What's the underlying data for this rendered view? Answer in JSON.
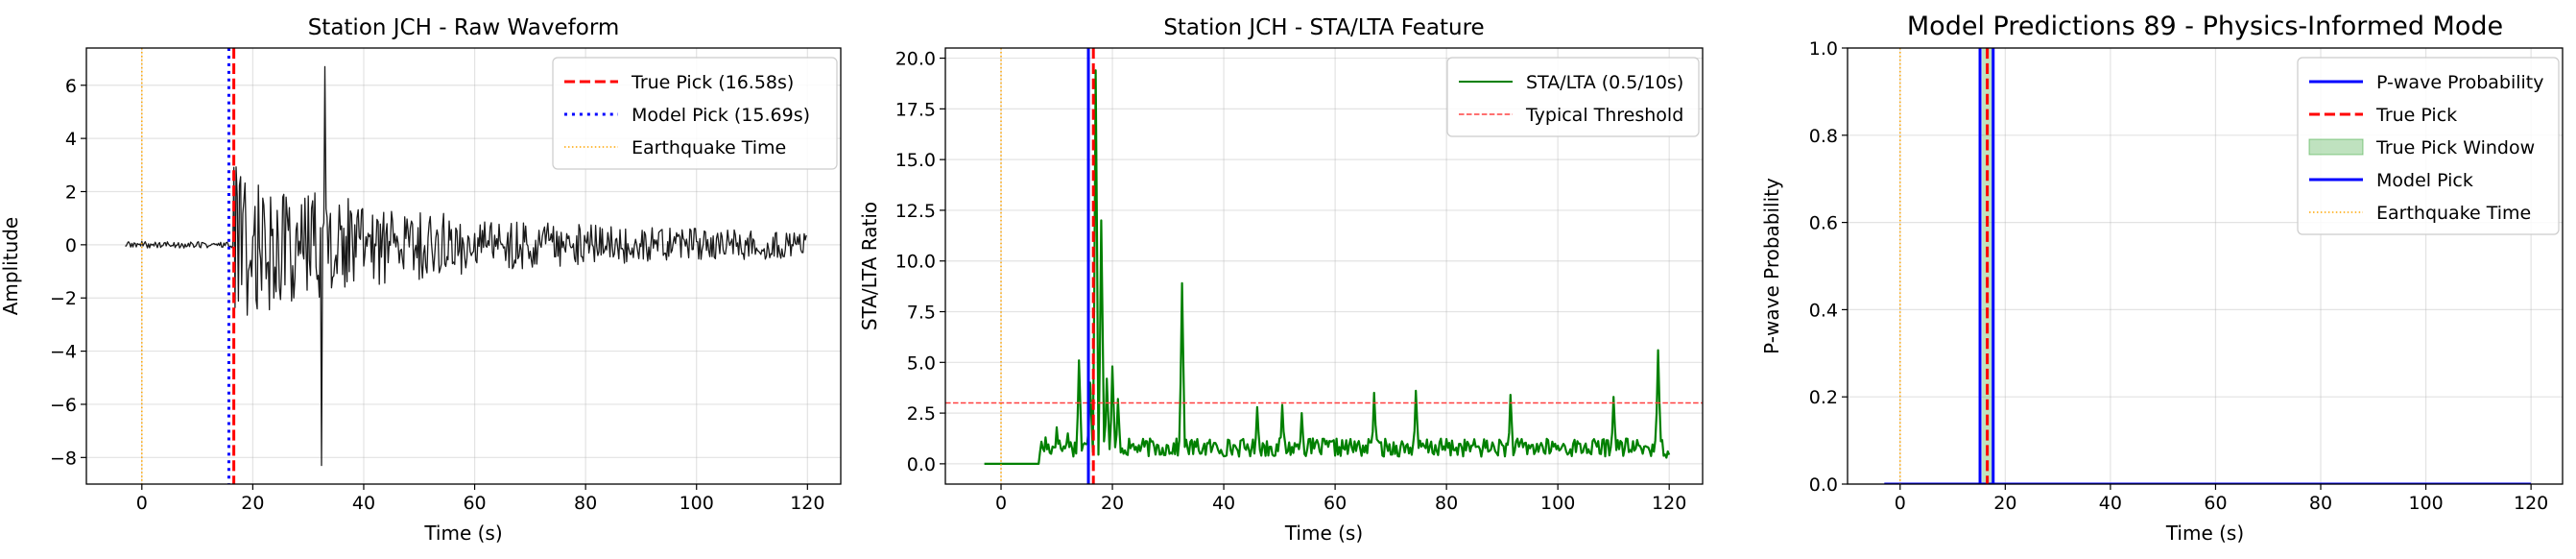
{
  "chart_data": [
    {
      "type": "line",
      "title": "Station JCH - Raw Waveform",
      "xlabel": "Time (s)",
      "ylabel": "Amplitude",
      "xlim": [
        -10,
        126
      ],
      "ylim": [
        -9.0,
        7.4
      ],
      "xticks": [
        0,
        20,
        40,
        60,
        80,
        100,
        120
      ],
      "xtick_labels": [
        "0",
        "20",
        "40",
        "60",
        "80",
        "100",
        "120"
      ],
      "yticks": [
        -8,
        -6,
        -4,
        -2,
        0,
        2,
        4,
        6
      ],
      "ytick_labels": [
        "−8",
        "−6",
        "−4",
        "−2",
        "0",
        "2",
        "4",
        "6"
      ],
      "grid": true,
      "legend_position": "top-right",
      "series": [
        {
          "name": "Waveform",
          "color": "#1a1a1a",
          "x_start": -3,
          "x_end": 120,
          "signal_onset": 16.58,
          "peak_time": 33,
          "envelope_max": 6.7,
          "envelope_min": -8.3,
          "in_legend": false
        }
      ],
      "vlines": [
        {
          "name": "True Pick (16.58s)",
          "x": 16.58,
          "color": "#ff0000",
          "style": "dashed",
          "width": 3
        },
        {
          "name": "Model Pick (15.69s)",
          "x": 15.69,
          "color": "#0000ff",
          "style": "dotted",
          "width": 3
        },
        {
          "name": "Earthquake Time",
          "x": 0,
          "color": "#ffa500",
          "style": "dotted",
          "width": 1.5
        }
      ],
      "legend": [
        {
          "label": "True Pick (16.58s)",
          "color": "#ff0000",
          "style": "dashed",
          "width": 3
        },
        {
          "label": "Model Pick (15.69s)",
          "color": "#0000ff",
          "style": "dotted",
          "width": 3
        },
        {
          "label": "Earthquake Time",
          "color": "#ffa500",
          "style": "dotted",
          "width": 1.5
        }
      ]
    },
    {
      "type": "line",
      "title": "Station JCH - STA/LTA Feature",
      "xlabel": "Time (s)",
      "ylabel": "STA/LTA Ratio",
      "xlim": [
        -10,
        126
      ],
      "ylim": [
        -1.0,
        20.5
      ],
      "xticks": [
        0,
        20,
        40,
        60,
        80,
        100,
        120
      ],
      "xtick_labels": [
        "0",
        "20",
        "40",
        "60",
        "80",
        "100",
        "120"
      ],
      "yticks": [
        0.0,
        2.5,
        5.0,
        7.5,
        10.0,
        12.5,
        15.0,
        17.5,
        20.0
      ],
      "ytick_labels": [
        "0.0",
        "2.5",
        "5.0",
        "7.5",
        "10.0",
        "12.5",
        "15.0",
        "17.5",
        "20.0"
      ],
      "grid": true,
      "legend_position": "top-right",
      "series": [
        {
          "name": "STA/LTA (0.5/10s)",
          "color": "#008000",
          "x_start": -3,
          "x_end": 120,
          "quiet_until": 7,
          "peaks": [
            [
              8,
              1.3
            ],
            [
              10,
              1.8
            ],
            [
              12,
              1.5
            ],
            [
              14,
              5.1
            ],
            [
              16,
              4.0
            ],
            [
              17,
              19.4
            ],
            [
              18,
              12.0
            ],
            [
              19,
              4.2
            ],
            [
              20,
              4.8
            ],
            [
              21,
              3.2
            ],
            [
              32.5,
              8.9
            ],
            [
              46,
              2.8
            ],
            [
              50.5,
              2.9
            ],
            [
              54,
              2.5
            ],
            [
              67,
              3.5
            ],
            [
              74.5,
              3.6
            ],
            [
              91.5,
              3.4
            ],
            [
              110,
              3.3
            ],
            [
              118,
              5.6
            ],
            [
              119.5,
              0.3
            ]
          ]
        }
      ],
      "hlines": [
        {
          "name": "Typical Threshold",
          "y": 3.0,
          "color": "#ff4040",
          "style": "dashed",
          "width": 1.5
        }
      ],
      "vlines": [
        {
          "name": "model-pick",
          "x": 15.69,
          "color": "#0000ff",
          "style": "solid",
          "width": 3
        },
        {
          "name": "true-pick",
          "x": 16.58,
          "color": "#ff0000",
          "style": "dashed",
          "width": 3
        },
        {
          "name": "earthquake-time",
          "x": 0,
          "color": "#ffa500",
          "style": "dotted",
          "width": 1.5
        }
      ],
      "legend": [
        {
          "label": "STA/LTA (0.5/10s)",
          "color": "#008000",
          "style": "solid",
          "width": 2
        },
        {
          "label": "Typical Threshold",
          "color": "#ff4040",
          "style": "dashed",
          "width": 1.5
        }
      ]
    },
    {
      "type": "line",
      "title": "Model Predictions 89 - Physics-Informed Mode",
      "xlabel": "Time (s)",
      "ylabel": "P-wave Probability",
      "xlim": [
        -10,
        126
      ],
      "ylim": [
        0.0,
        1.0
      ],
      "xticks": [
        0,
        20,
        40,
        60,
        80,
        100,
        120
      ],
      "xtick_labels": [
        "0",
        "20",
        "40",
        "60",
        "80",
        "100",
        "120"
      ],
      "yticks": [
        0.0,
        0.2,
        0.4,
        0.6,
        0.8,
        1.0
      ],
      "ytick_labels": [
        "0.0",
        "0.2",
        "0.4",
        "0.6",
        "0.8",
        "1.0"
      ],
      "grid": true,
      "legend_position": "top-right",
      "series": [
        {
          "name": "P-wave Probability",
          "color": "#0000ff",
          "x": [
            -3,
            120
          ],
          "y": [
            0.0,
            0.0
          ]
        }
      ],
      "spans": [
        {
          "name": "True Pick Window",
          "x0": 15.58,
          "x1": 17.58,
          "color": "#2ca02c",
          "opacity": 0.3
        }
      ],
      "vlines": [
        {
          "name": "model-pick-left",
          "x": 15.2,
          "color": "#0000ff",
          "style": "solid",
          "width": 3
        },
        {
          "name": "model-pick-right",
          "x": 17.7,
          "color": "#0000ff",
          "style": "solid",
          "width": 3
        },
        {
          "name": "True Pick",
          "x": 16.58,
          "color": "#ff0000",
          "style": "dashed",
          "width": 3
        },
        {
          "name": "Earthquake Time",
          "x": 0,
          "color": "#ffa500",
          "style": "dotted",
          "width": 1.5
        }
      ],
      "legend": [
        {
          "label": "P-wave Probability",
          "color": "#0000ff",
          "style": "solid",
          "width": 3
        },
        {
          "label": "True Pick",
          "color": "#ff0000",
          "style": "dashed",
          "width": 3
        },
        {
          "label": "True Pick Window",
          "color": "#2ca02c",
          "style": "patch",
          "width": 1
        },
        {
          "label": "Model Pick",
          "color": "#0000ff",
          "style": "solid",
          "width": 3
        },
        {
          "label": "Earthquake Time",
          "color": "#ffa500",
          "style": "dotted",
          "width": 1.5
        }
      ]
    }
  ]
}
